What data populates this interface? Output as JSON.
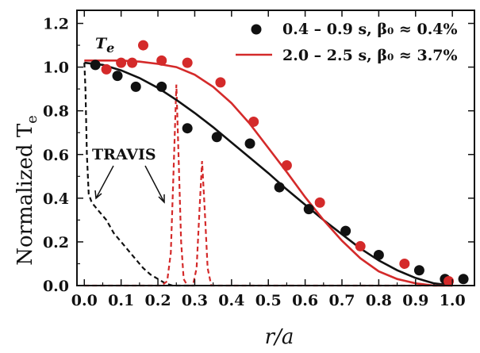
{
  "chart_data": {
    "type": "scatter",
    "title": "",
    "xlabel": "r/a",
    "ylabel": "Normalized T",
    "ylabel_sub": "e",
    "xlim": [
      -0.02,
      1.06
    ],
    "ylim": [
      0.0,
      1.26
    ],
    "xticks": [
      0.0,
      0.1,
      0.2,
      0.3,
      0.4,
      0.5,
      0.6,
      0.7,
      0.8,
      0.9,
      1.0
    ],
    "xtick_labels": [
      "0.0",
      "0.1",
      "0.2",
      "0.3",
      "0.4",
      "0.5",
      "0.6",
      "0.7",
      "0.8",
      "0.9",
      "1.0"
    ],
    "yticks": [
      0.0,
      0.2,
      0.4,
      0.6,
      0.8,
      1.0,
      1.2
    ],
    "ytick_labels": [
      "0.0",
      "0.2",
      "0.4",
      "0.6",
      "0.8",
      "1.0",
      "1.2"
    ],
    "grid": false,
    "legend_position": "top-right",
    "colors": {
      "black": "#111111",
      "red": "#d42a2a"
    },
    "series": [
      {
        "name": "0.4 – 0.9 s, β₀ ≈ 0.4%",
        "color": "#111111",
        "points": [
          [
            0.03,
            1.01
          ],
          [
            0.09,
            0.96
          ],
          [
            0.14,
            0.91
          ],
          [
            0.21,
            0.91
          ],
          [
            0.28,
            0.72
          ],
          [
            0.36,
            0.68
          ],
          [
            0.45,
            0.65
          ],
          [
            0.53,
            0.45
          ],
          [
            0.61,
            0.35
          ],
          [
            0.71,
            0.25
          ],
          [
            0.8,
            0.14
          ],
          [
            0.91,
            0.07
          ],
          [
            0.98,
            0.03
          ],
          [
            1.03,
            0.03
          ]
        ],
        "fit": [
          [
            0.0,
            1.02
          ],
          [
            0.05,
            1.01
          ],
          [
            0.1,
            0.985
          ],
          [
            0.15,
            0.95
          ],
          [
            0.2,
            0.905
          ],
          [
            0.25,
            0.85
          ],
          [
            0.3,
            0.79
          ],
          [
            0.35,
            0.725
          ],
          [
            0.4,
            0.655
          ],
          [
            0.45,
            0.585
          ],
          [
            0.5,
            0.515
          ],
          [
            0.55,
            0.44
          ],
          [
            0.6,
            0.37
          ],
          [
            0.65,
            0.3
          ],
          [
            0.7,
            0.235
          ],
          [
            0.75,
            0.17
          ],
          [
            0.8,
            0.115
          ],
          [
            0.85,
            0.07
          ],
          [
            0.9,
            0.035
          ],
          [
            0.95,
            0.01
          ],
          [
            1.0,
            0.0
          ]
        ]
      },
      {
        "name": "2.0 – 2.5 s, β₀ ≈ 3.7%",
        "color": "#d42a2a",
        "points": [
          [
            0.06,
            0.99
          ],
          [
            0.1,
            1.02
          ],
          [
            0.13,
            1.02
          ],
          [
            0.16,
            1.1
          ],
          [
            0.21,
            1.03
          ],
          [
            0.28,
            1.02
          ],
          [
            0.37,
            0.93
          ],
          [
            0.46,
            0.75
          ],
          [
            0.55,
            0.55
          ],
          [
            0.64,
            0.38
          ],
          [
            0.75,
            0.18
          ],
          [
            0.87,
            0.1
          ],
          [
            0.99,
            0.02
          ]
        ],
        "fit": [
          [
            0.0,
            1.03
          ],
          [
            0.05,
            1.03
          ],
          [
            0.1,
            1.03
          ],
          [
            0.15,
            1.025
          ],
          [
            0.2,
            1.015
          ],
          [
            0.25,
            1.0
          ],
          [
            0.3,
            0.965
          ],
          [
            0.35,
            0.91
          ],
          [
            0.4,
            0.835
          ],
          [
            0.45,
            0.74
          ],
          [
            0.5,
            0.63
          ],
          [
            0.55,
            0.52
          ],
          [
            0.6,
            0.405
          ],
          [
            0.65,
            0.3
          ],
          [
            0.7,
            0.205
          ],
          [
            0.75,
            0.125
          ],
          [
            0.8,
            0.065
          ],
          [
            0.85,
            0.03
          ],
          [
            0.9,
            0.01
          ],
          [
            0.95,
            0.0
          ],
          [
            1.0,
            0.0
          ]
        ]
      }
    ],
    "travis_profiles": [
      {
        "color": "#111111",
        "line": [
          [
            0.0,
            1.02
          ],
          [
            0.003,
            0.9
          ],
          [
            0.007,
            0.6
          ],
          [
            0.012,
            0.42
          ],
          [
            0.02,
            0.38
          ],
          [
            0.04,
            0.34
          ],
          [
            0.06,
            0.3
          ],
          [
            0.08,
            0.24
          ],
          [
            0.1,
            0.2
          ],
          [
            0.12,
            0.16
          ],
          [
            0.14,
            0.12
          ],
          [
            0.16,
            0.08
          ],
          [
            0.18,
            0.05
          ],
          [
            0.2,
            0.03
          ],
          [
            0.22,
            0.01
          ],
          [
            0.24,
            0.0
          ],
          [
            0.3,
            0.0
          ]
        ]
      },
      {
        "color": "#d42a2a",
        "line": [
          [
            0.0,
            0.0
          ],
          [
            0.21,
            0.0
          ],
          [
            0.225,
            0.02
          ],
          [
            0.235,
            0.15
          ],
          [
            0.243,
            0.55
          ],
          [
            0.25,
            0.92
          ],
          [
            0.256,
            0.6
          ],
          [
            0.263,
            0.2
          ],
          [
            0.27,
            0.03
          ],
          [
            0.28,
            0.0
          ],
          [
            0.295,
            0.0
          ],
          [
            0.305,
            0.08
          ],
          [
            0.313,
            0.35
          ],
          [
            0.32,
            0.57
          ],
          [
            0.327,
            0.35
          ],
          [
            0.335,
            0.08
          ],
          [
            0.345,
            0.0
          ],
          [
            1.0,
            0.0
          ]
        ]
      }
    ],
    "annotations": {
      "te_label": "T",
      "te_sub": "e",
      "travis_label": "TRAVIS"
    }
  }
}
